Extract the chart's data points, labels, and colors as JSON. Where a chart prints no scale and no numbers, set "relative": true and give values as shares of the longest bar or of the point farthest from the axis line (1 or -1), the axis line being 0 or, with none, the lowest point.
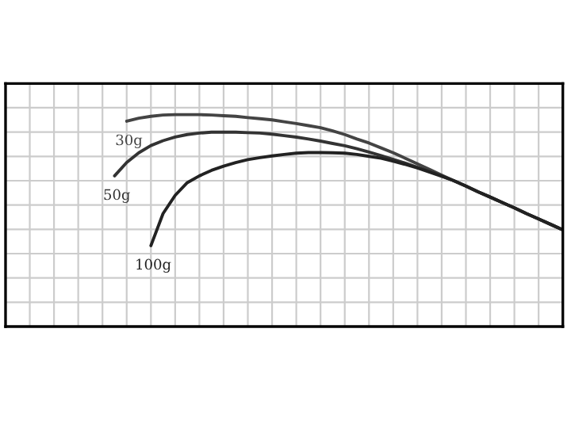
{
  "chart_data": {
    "type": "line",
    "relative": true,
    "grid": true,
    "marker": "none",
    "line_style": "solid",
    "categories": [
      null,
      null,
      null,
      null,
      null,
      null,
      null,
      null,
      null,
      null,
      null,
      null,
      null,
      null,
      null,
      null,
      null,
      null,
      null,
      null,
      null,
      null,
      null,
      null,
      null,
      null,
      null,
      null,
      null,
      null,
      null,
      null,
      null,
      null,
      null,
      null,
      null,
      null,
      null,
      null,
      null,
      null,
      null,
      null,
      null,
      null,
      null
    ],
    "series": [
      {
        "name": "30g",
        "color": "#444444",
        "values": [
          null,
          null,
          null,
          null,
          null,
          null,
          null,
          null,
          null,
          null,
          0.969,
          0.983,
          0.992,
          0.998,
          1,
          1,
          1,
          0.998,
          0.995,
          0.992,
          0.986,
          0.981,
          0.975,
          0.966,
          0.958,
          0.948,
          0.938,
          0.923,
          0.906,
          0.885,
          0.866,
          0.843,
          0.82,
          0.794,
          0.768,
          0.741,
          0.714,
          0.688,
          0.663,
          0.636,
          0.611,
          0.585,
          0.56,
          0.533,
          0.508,
          0.482,
          0.456
        ]
      },
      {
        "name": "50g",
        "color": "#333333",
        "values": [
          null,
          null,
          null,
          null,
          null,
          null,
          null,
          null,
          null,
          0.711,
          0.774,
          0.82,
          0.854,
          0.877,
          0.894,
          0.906,
          0.913,
          0.917,
          0.917,
          0.917,
          0.915,
          0.913,
          0.908,
          0.901,
          0.894,
          0.885,
          0.875,
          0.864,
          0.853,
          0.839,
          0.823,
          0.806,
          0.789,
          0.771,
          0.751,
          0.732,
          0.711,
          0.688,
          0.663,
          0.636,
          0.611,
          0.585,
          0.56,
          0.533,
          0.508,
          0.482,
          0.456
        ]
      },
      {
        "name": "100g",
        "color": "#222222",
        "values": [
          null,
          null,
          null,
          null,
          null,
          null,
          null,
          null,
          null,
          null,
          null,
          null,
          0.382,
          0.533,
          0.619,
          0.679,
          0.711,
          0.737,
          0.757,
          0.774,
          0.788,
          0.797,
          0.805,
          0.812,
          0.818,
          0.821,
          0.821,
          0.82,
          0.818,
          0.812,
          0.803,
          0.794,
          0.78,
          0.765,
          0.748,
          0.729,
          0.709,
          0.688,
          0.663,
          0.636,
          0.611,
          0.585,
          0.56,
          0.533,
          0.508,
          0.482,
          0.456
        ]
      }
    ]
  }
}
